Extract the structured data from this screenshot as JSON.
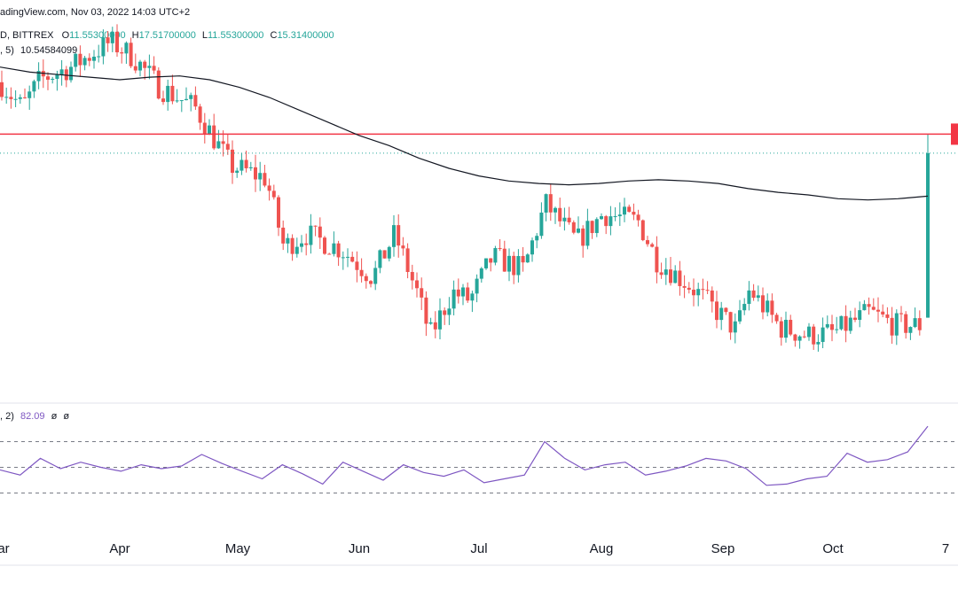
{
  "header": {
    "watermark": "adingView.com, Nov 03, 2022 14:03 UTC+2",
    "symbol": "D, BITTREX",
    "ohlc": {
      "o_label": "O",
      "o_value": "11.55300000",
      "h_label": "H",
      "h_value": "17.51700000",
      "l_label": "L",
      "l_value": "11.55300000",
      "c_label": "C",
      "c_value": "15.31400000"
    },
    "ma_label": ", 5)",
    "ma_value": "10.54584099"
  },
  "rsi_header": {
    "label": ", 2)",
    "value": "82.09",
    "empty1": "ø",
    "empty2": "ø"
  },
  "colors": {
    "up": "#26a69a",
    "down": "#ef5350",
    "ma": "#131722",
    "resistance": "#f23645",
    "rsi": "#7e57c2",
    "grid": "#e0e3eb"
  },
  "chart_data": {
    "type": "candlestick",
    "x_labels": [
      "ar",
      "Apr",
      "May",
      "Jun",
      "Jul",
      "Aug",
      "Sep",
      "Oct",
      "7"
    ],
    "resistance_level": 9.75,
    "close_price_line": 9.0,
    "y_range": [
      0,
      14
    ],
    "moving_average": [
      12.4,
      12.2,
      12.1,
      12.0,
      11.9,
      12.0,
      12.05,
      11.9,
      11.6,
      11.2,
      10.7,
      10.2,
      9.7,
      9.3,
      8.8,
      8.4,
      8.1,
      7.9,
      7.8,
      7.75,
      7.8,
      7.9,
      7.95,
      7.9,
      7.8,
      7.6,
      7.45,
      7.35,
      7.2,
      7.15,
      7.2,
      7.3
    ],
    "rsi": {
      "values": [
        48,
        44,
        57,
        49,
        54,
        50,
        47,
        52,
        49,
        51,
        60,
        53,
        47,
        41,
        52,
        45,
        37,
        54,
        47,
        40,
        52,
        46,
        43,
        48,
        38,
        41,
        44,
        70,
        57,
        48,
        52,
        54,
        44,
        47,
        51,
        57,
        55,
        49,
        36,
        37,
        41,
        43,
        61,
        54,
        56,
        62,
        82
      ],
      "levels": [
        70,
        50,
        30
      ],
      "last": 82.09
    }
  }
}
